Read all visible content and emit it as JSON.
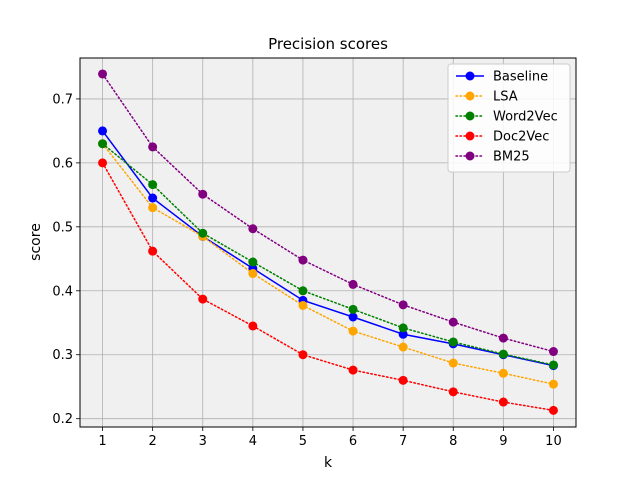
{
  "chart_data": {
    "type": "line",
    "title": "Precision scores",
    "xlabel": "k",
    "ylabel": "score",
    "x": [
      1,
      2,
      3,
      4,
      5,
      6,
      7,
      8,
      9,
      10
    ],
    "xlim": [
      0.55,
      10.45
    ],
    "ylim": [
      0.187,
      0.764
    ],
    "xticks": [
      1,
      2,
      3,
      4,
      5,
      6,
      7,
      8,
      9,
      10
    ],
    "yticks": [
      0.2,
      0.3,
      0.4,
      0.5,
      0.6,
      0.7
    ],
    "grid": true,
    "legend_position": "top-right",
    "series": [
      {
        "name": "Baseline",
        "color": "#0000ff",
        "style": "solid",
        "values": [
          0.65,
          0.545,
          0.485,
          0.435,
          0.385,
          0.359,
          0.332,
          0.317,
          0.3,
          0.283
        ]
      },
      {
        "name": "LSA",
        "color": "#ffa500",
        "style": "dotted",
        "values": [
          0.63,
          0.53,
          0.485,
          0.427,
          0.377,
          0.337,
          0.312,
          0.287,
          0.271,
          0.254
        ]
      },
      {
        "name": "Word2Vec",
        "color": "#008000",
        "style": "dotted",
        "values": [
          0.63,
          0.566,
          0.49,
          0.445,
          0.4,
          0.371,
          0.342,
          0.32,
          0.301,
          0.284
        ]
      },
      {
        "name": "Doc2Vec",
        "color": "#ff0000",
        "style": "dotted",
        "values": [
          0.6,
          0.462,
          0.387,
          0.345,
          0.3,
          0.276,
          0.26,
          0.242,
          0.226,
          0.213
        ]
      },
      {
        "name": "BM25",
        "color": "#800080",
        "style": "dotted",
        "values": [
          0.739,
          0.625,
          0.551,
          0.497,
          0.448,
          0.41,
          0.378,
          0.351,
          0.326,
          0.305
        ]
      }
    ]
  }
}
